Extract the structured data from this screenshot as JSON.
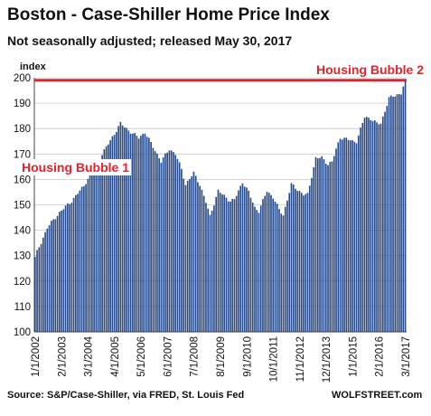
{
  "chart_data": {
    "type": "bar",
    "title": "Boston - Case-Shiller Home Price Index",
    "subtitle": "Not seasonally adjusted; released May 30, 2017",
    "ylabel": "index",
    "ylim": [
      100,
      200
    ],
    "yticks": [
      100,
      110,
      120,
      130,
      140,
      150,
      160,
      170,
      180,
      190,
      200
    ],
    "grid": true,
    "bar_color": "#264a8a",
    "annotation_color": "#e8202a",
    "x_start": "1/1/2002",
    "x_end": "3/1/2017",
    "xtick_labels": [
      "1/1/2002",
      "2/1/2003",
      "3/1/2004",
      "4/1/2005",
      "5/1/2006",
      "6/1/2007",
      "7/1/2008",
      "8/1/2009",
      "9/1/2010",
      "10/1/2011",
      "11/1/2012",
      "12/1/2013",
      "1/1/2015",
      "2/1/2016",
      "3/1/2017"
    ],
    "annotations": [
      {
        "text": "Housing Bubble 1"
      },
      {
        "text": "Housing Bubble 2",
        "line_value": 199
      }
    ],
    "anchors": [
      [
        "1/1/2002",
        129.5
      ],
      [
        "7/1/2002",
        141
      ],
      [
        "1/1/2003",
        147
      ],
      [
        "7/1/2003",
        151.5
      ],
      [
        "1/1/2004",
        157.5
      ],
      [
        "7/1/2004",
        166
      ],
      [
        "1/1/2005",
        174
      ],
      [
        "7/1/2005",
        182
      ],
      [
        "1/1/2006",
        178
      ],
      [
        "4/1/2006",
        176.5
      ],
      [
        "7/1/2006",
        178.5
      ],
      [
        "1/1/2007",
        170
      ],
      [
        "3/1/2007",
        167
      ],
      [
        "7/1/2007",
        172
      ],
      [
        "10/1/2007",
        170
      ],
      [
        "1/1/2008",
        164
      ],
      [
        "3/1/2008",
        158
      ],
      [
        "7/1/2008",
        162.5
      ],
      [
        "10/1/2008",
        158
      ],
      [
        "1/1/2009",
        151
      ],
      [
        "3/1/2009",
        145.5
      ],
      [
        "7/1/2009",
        155.5
      ],
      [
        "10/1/2009",
        153.5
      ],
      [
        "1/1/2010",
        151.5
      ],
      [
        "3/1/2010",
        152
      ],
      [
        "7/1/2010",
        159
      ],
      [
        "10/1/2010",
        155
      ],
      [
        "1/1/2011",
        149
      ],
      [
        "3/1/2011",
        147.5
      ],
      [
        "7/1/2011",
        155.5
      ],
      [
        "10/1/2011",
        153
      ],
      [
        "1/1/2012",
        148
      ],
      [
        "3/1/2012",
        146
      ],
      [
        "7/1/2012",
        158
      ],
      [
        "10/1/2012",
        156
      ],
      [
        "1/1/2013",
        154
      ],
      [
        "3/1/2013",
        154
      ],
      [
        "7/1/2013",
        168.5
      ],
      [
        "10/1/2013",
        168.5
      ],
      [
        "1/1/2014",
        166
      ],
      [
        "3/1/2014",
        167
      ],
      [
        "7/1/2014",
        176.5
      ],
      [
        "10/1/2014",
        176
      ],
      [
        "1/1/2015",
        175
      ],
      [
        "3/1/2015",
        175
      ],
      [
        "7/1/2015",
        184.5
      ],
      [
        "10/1/2015",
        184
      ],
      [
        "1/1/2016",
        182
      ],
      [
        "3/1/2016",
        182
      ],
      [
        "7/1/2016",
        192
      ],
      [
        "10/1/2016",
        193
      ],
      [
        "1/1/2017",
        194
      ],
      [
        "3/1/2017",
        199
      ]
    ]
  },
  "footer": {
    "source": "Source: S&P/Case-Shiller, via FRED,  St. Louis Fed",
    "brand": "WOLFSTREET.com"
  }
}
